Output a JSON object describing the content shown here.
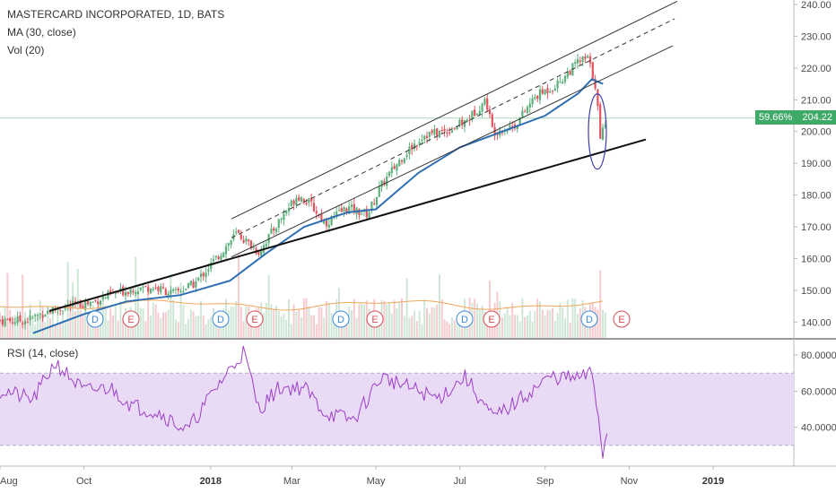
{
  "header": {
    "symbol_line": "MASTERCARD INCORPORATED, 1D, BATS",
    "ma_line": "MA (30, close)",
    "vol_line": "Vol (20)"
  },
  "price_tag": {
    "pct": "59.66%",
    "price": "204.22"
  },
  "rsi_legend": "RSI (14, close)",
  "colors": {
    "up": "#5db07b",
    "down": "#e0545f",
    "ma": "#2f6fb3",
    "rsi": "#9c3fc4",
    "band": "#e9dbf5"
  },
  "chart_data": [
    {
      "type": "line",
      "ohlc": "candlestick",
      "ylim": [
        135,
        240
      ],
      "y_ticks": [
        "240.00",
        "230.00",
        "220.00",
        "210.00",
        "200.00",
        "190.00",
        "180.00",
        "170.00",
        "160.00",
        "150.00",
        "140.00"
      ],
      "x_ticks": [
        "Aug",
        "Oct",
        "2018",
        "Mar",
        "May",
        "Jul",
        "Sep",
        "Nov",
        "2019"
      ],
      "events": [
        "D",
        "E",
        "D",
        "E",
        "D",
        "E",
        "D",
        "E",
        "D",
        "E"
      ],
      "price_series": [
        {
          "x": "2017-08-20",
          "y": 140.5
        },
        {
          "x": "2017-09-05",
          "y": 143.5
        },
        {
          "x": "2017-09-20",
          "y": 145.0
        },
        {
          "x": "2017-10-05",
          "y": 146.0
        },
        {
          "x": "2017-10-20",
          "y": 148.5
        },
        {
          "x": "2017-11-05",
          "y": 150.5
        },
        {
          "x": "2017-11-20",
          "y": 151.0
        },
        {
          "x": "2017-12-05",
          "y": 149.0
        },
        {
          "x": "2017-12-20",
          "y": 152.0
        },
        {
          "x": "2018-01-05",
          "y": 160.0
        },
        {
          "x": "2018-01-20",
          "y": 168.0
        },
        {
          "x": "2018-02-05",
          "y": 162.0
        },
        {
          "x": "2018-02-20",
          "y": 172.0
        },
        {
          "x": "2018-03-05",
          "y": 180.0
        },
        {
          "x": "2018-03-15",
          "y": 177.0
        },
        {
          "x": "2018-03-25",
          "y": 171.0
        },
        {
          "x": "2018-04-10",
          "y": 176.0
        },
        {
          "x": "2018-04-25",
          "y": 174.0
        },
        {
          "x": "2018-05-05",
          "y": 183.0
        },
        {
          "x": "2018-05-20",
          "y": 192.0
        },
        {
          "x": "2018-06-05",
          "y": 199.0
        },
        {
          "x": "2018-06-20",
          "y": 200.0
        },
        {
          "x": "2018-07-05",
          "y": 203.0
        },
        {
          "x": "2018-07-20",
          "y": 210.0
        },
        {
          "x": "2018-07-25",
          "y": 200.0
        },
        {
          "x": "2018-08-10",
          "y": 202.0
        },
        {
          "x": "2018-08-25",
          "y": 211.0
        },
        {
          "x": "2018-09-10",
          "y": 215.0
        },
        {
          "x": "2018-09-25",
          "y": 222.0
        },
        {
          "x": "2018-10-02",
          "y": 223.0
        },
        {
          "x": "2018-10-08",
          "y": 214.0
        },
        {
          "x": "2018-10-11",
          "y": 197.0
        },
        {
          "x": "2018-10-15",
          "y": 204.22
        }
      ],
      "ma30": [
        {
          "x": "2017-08-25",
          "y": 136.5
        },
        {
          "x": "2017-10-01",
          "y": 142.5
        },
        {
          "x": "2017-11-01",
          "y": 146.5
        },
        {
          "x": "2017-12-10",
          "y": 148.5
        },
        {
          "x": "2018-01-15",
          "y": 153.0
        },
        {
          "x": "2018-02-10",
          "y": 161.5
        },
        {
          "x": "2018-03-10",
          "y": 170.0
        },
        {
          "x": "2018-04-10",
          "y": 174.5
        },
        {
          "x": "2018-05-01",
          "y": 175.5
        },
        {
          "x": "2018-06-01",
          "y": 187.0
        },
        {
          "x": "2018-07-01",
          "y": 195.0
        },
        {
          "x": "2018-08-01",
          "y": 200.0
        },
        {
          "x": "2018-09-01",
          "y": 205.0
        },
        {
          "x": "2018-09-25",
          "y": 212.0
        },
        {
          "x": "2018-10-05",
          "y": 216.5
        },
        {
          "x": "2018-10-13",
          "y": 215.0
        }
      ],
      "rsi": {
        "ylim": [
          20,
          87
        ],
        "y_ticks": [
          "80.0000",
          "60.0000",
          "40.0000"
        ],
        "band": [
          30,
          70
        ],
        "values": [
          {
            "x": "2017-08-05",
            "y": 60
          },
          {
            "x": "2017-08-25",
            "y": 55
          },
          {
            "x": "2017-09-10",
            "y": 76
          },
          {
            "x": "2017-10-01",
            "y": 60
          },
          {
            "x": "2017-10-20",
            "y": 62
          },
          {
            "x": "2017-11-05",
            "y": 52
          },
          {
            "x": "2017-11-25",
            "y": 48
          },
          {
            "x": "2017-12-15",
            "y": 38
          },
          {
            "x": "2018-01-05",
            "y": 62
          },
          {
            "x": "2018-01-25",
            "y": 82
          },
          {
            "x": "2018-02-05",
            "y": 50
          },
          {
            "x": "2018-02-20",
            "y": 62
          },
          {
            "x": "2018-03-10",
            "y": 62
          },
          {
            "x": "2018-03-25",
            "y": 48
          },
          {
            "x": "2018-04-15",
            "y": 44
          },
          {
            "x": "2018-05-05",
            "y": 68
          },
          {
            "x": "2018-05-25",
            "y": 62
          },
          {
            "x": "2018-06-15",
            "y": 56
          },
          {
            "x": "2018-07-05",
            "y": 68
          },
          {
            "x": "2018-07-25",
            "y": 45
          },
          {
            "x": "2018-08-15",
            "y": 56
          },
          {
            "x": "2018-09-05",
            "y": 68
          },
          {
            "x": "2018-09-25",
            "y": 67
          },
          {
            "x": "2018-10-05",
            "y": 70
          },
          {
            "x": "2018-10-10",
            "y": 45
          },
          {
            "x": "2018-10-13",
            "y": 24
          },
          {
            "x": "2018-10-16",
            "y": 38
          }
        ]
      }
    }
  ]
}
